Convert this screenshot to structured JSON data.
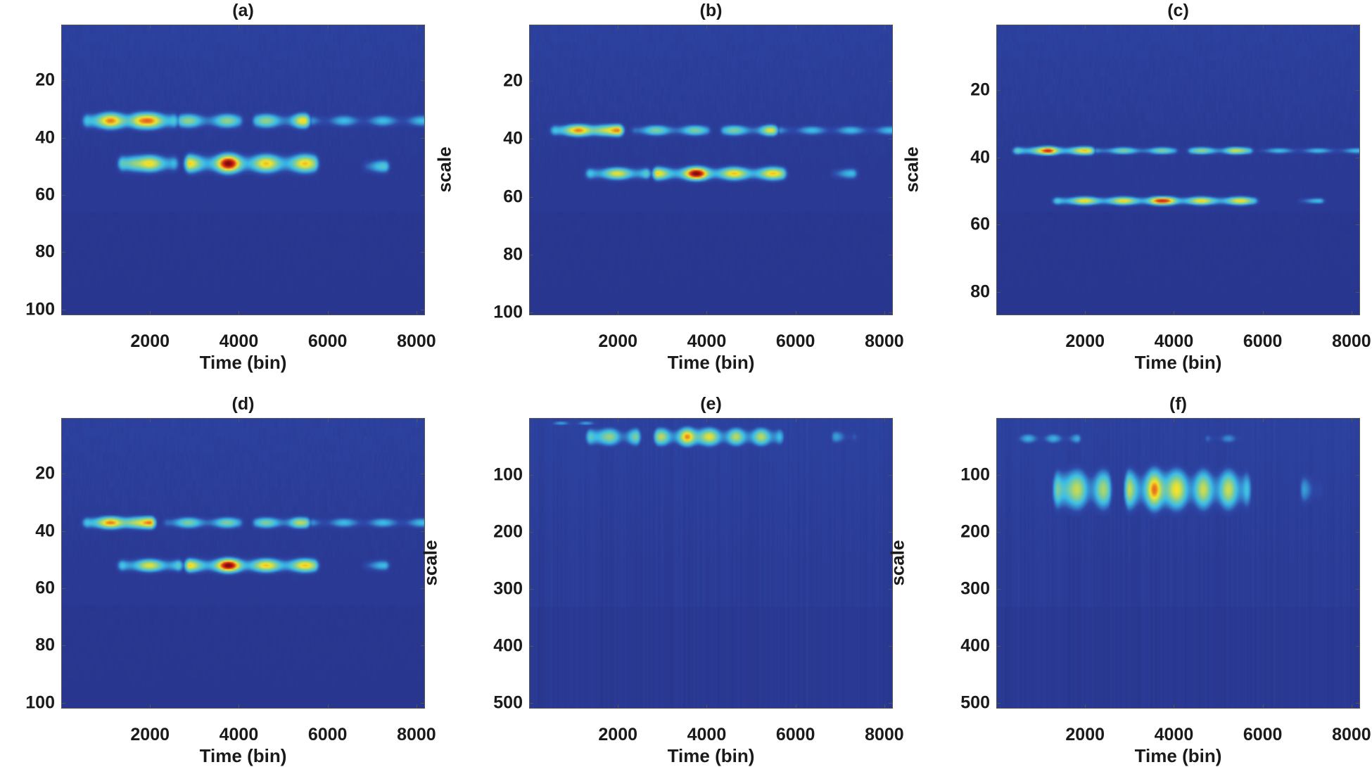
{
  "chart_data": [
    {
      "type": "heatmap",
      "title": "(a)",
      "xlabel": "Time (bin)",
      "ylabel": "scale",
      "xlim": [
        0,
        8192
      ],
      "ylim": [
        0.5,
        102
      ],
      "y_reversed": true,
      "xticks": [
        2000,
        4000,
        6000,
        8000
      ],
      "yticks": [
        20,
        40,
        60,
        80,
        100
      ],
      "colormap": "jet",
      "features": [
        {
          "t": [
            600,
            2500
          ],
          "scale": 34,
          "width": 2.5,
          "peak": 0.85,
          "hot": [
            1700
          ]
        },
        {
          "t": [
            2700,
            4000
          ],
          "scale": 34,
          "width": 2.3,
          "peak": 0.65,
          "hot": []
        },
        {
          "t": [
            4400,
            5500
          ],
          "scale": 34,
          "width": 2.3,
          "peak": 0.65,
          "hot": [
            5400
          ]
        },
        {
          "t": [
            5700,
            8192
          ],
          "scale": 34,
          "width": 2.0,
          "peak": 0.5,
          "hot": []
        },
        {
          "t": [
            1400,
            2500
          ],
          "scale": 49,
          "width": 2.6,
          "peak": 0.78,
          "hot": [
            1600
          ]
        },
        {
          "t": [
            2900,
            5700
          ],
          "scale": 49,
          "width": 2.8,
          "peak": 0.8,
          "hot": [
            3700,
            3900
          ]
        },
        {
          "t": [
            6900,
            7300
          ],
          "scale": 50,
          "width": 2.2,
          "peak": 0.55,
          "hot": []
        }
      ]
    },
    {
      "type": "heatmap",
      "title": "(b)",
      "xlabel": "Time (bin)",
      "ylabel": "scale",
      "xlim": [
        0,
        8192
      ],
      "ylim": [
        0.5,
        101
      ],
      "y_reversed": true,
      "xticks": [
        2000,
        4000,
        6000,
        8000
      ],
      "yticks": [
        20,
        40,
        60,
        80,
        100
      ],
      "colormap": "jet",
      "features": [
        {
          "t": [
            600,
            2000
          ],
          "scale": 37,
          "width": 1.8,
          "peak": 0.85,
          "hot": [
            1600
          ]
        },
        {
          "t": [
            2400,
            4000
          ],
          "scale": 37,
          "width": 1.7,
          "peak": 0.62,
          "hot": []
        },
        {
          "t": [
            4400,
            5500
          ],
          "scale": 37,
          "width": 1.7,
          "peak": 0.62,
          "hot": [
            5400
          ]
        },
        {
          "t": [
            5700,
            8192
          ],
          "scale": 37,
          "width": 1.6,
          "peak": 0.5,
          "hot": []
        },
        {
          "t": [
            1400,
            2600
          ],
          "scale": 52,
          "width": 1.9,
          "peak": 0.75,
          "hot": []
        },
        {
          "t": [
            2900,
            5700
          ],
          "scale": 52,
          "width": 2.0,
          "peak": 0.8,
          "hot": [
            3700,
            3900
          ]
        },
        {
          "t": [
            6900,
            7300
          ],
          "scale": 52,
          "width": 1.8,
          "peak": 0.5,
          "hot": []
        }
      ]
    },
    {
      "type": "heatmap",
      "title": "(c)",
      "xlabel": "Time (bin)",
      "ylabel": "scale",
      "xlim": [
        0,
        8192
      ],
      "ylim": [
        0.5,
        87
      ],
      "y_reversed": true,
      "xticks": [
        2000,
        4000,
        6000,
        8000
      ],
      "yticks": [
        20,
        40,
        60,
        80
      ],
      "colormap": "jet",
      "features": [
        {
          "t": [
            500,
            2100
          ],
          "scale": 38,
          "width": 1.1,
          "peak": 0.8,
          "hot": [
            1200
          ]
        },
        {
          "t": [
            2300,
            4000
          ],
          "scale": 38,
          "width": 1.0,
          "peak": 0.62,
          "hot": []
        },
        {
          "t": [
            4400,
            5700
          ],
          "scale": 38,
          "width": 1.0,
          "peak": 0.65,
          "hot": [
            5300
          ]
        },
        {
          "t": [
            6000,
            8192
          ],
          "scale": 38,
          "width": 0.9,
          "peak": 0.5,
          "hot": []
        },
        {
          "t": [
            1400,
            5800
          ],
          "scale": 53,
          "width": 1.1,
          "peak": 0.78,
          "hot": [
            3600,
            3900
          ]
        },
        {
          "t": [
            6900,
            7300
          ],
          "scale": 53,
          "width": 0.9,
          "peak": 0.5,
          "hot": []
        }
      ]
    },
    {
      "type": "heatmap",
      "title": "(d)",
      "xlabel": "Time (bin)",
      "ylabel": "scale",
      "xlim": [
        0,
        8192
      ],
      "ylim": [
        0.5,
        102
      ],
      "y_reversed": true,
      "xticks": [
        2000,
        4000,
        6000,
        8000
      ],
      "yticks": [
        20,
        40,
        60,
        80,
        100
      ],
      "colormap": "jet",
      "features": [
        {
          "t": [
            600,
            2000
          ],
          "scale": 37,
          "width": 1.9,
          "peak": 0.85,
          "hot": [
            1600
          ]
        },
        {
          "t": [
            2400,
            4000
          ],
          "scale": 37,
          "width": 1.8,
          "peak": 0.62,
          "hot": []
        },
        {
          "t": [
            4400,
            5500
          ],
          "scale": 37,
          "width": 1.8,
          "peak": 0.62,
          "hot": [
            5300
          ]
        },
        {
          "t": [
            5700,
            8192
          ],
          "scale": 37,
          "width": 1.7,
          "peak": 0.5,
          "hot": []
        },
        {
          "t": [
            1400,
            2600
          ],
          "scale": 52,
          "width": 2.0,
          "peak": 0.75,
          "hot": []
        },
        {
          "t": [
            2900,
            5700
          ],
          "scale": 52,
          "width": 2.1,
          "peak": 0.8,
          "hot": [
            3700,
            3900
          ]
        },
        {
          "t": [
            6900,
            7300
          ],
          "scale": 52,
          "width": 1.8,
          "peak": 0.5,
          "hot": []
        }
      ]
    },
    {
      "type": "heatmap",
      "title": "(e)",
      "xlabel": "Time (bin)",
      "ylabel": "scale",
      "xlim": [
        0,
        8192
      ],
      "ylim": [
        0,
        510
      ],
      "y_reversed": true,
      "xticks": [
        2000,
        4000,
        6000,
        8000
      ],
      "yticks": [
        100,
        200,
        300,
        400,
        500
      ],
      "colormap": "jet",
      "features": [
        {
          "t": [
            1400,
            2400
          ],
          "scale": 32,
          "width": 14,
          "peak": 0.62,
          "hot": [
            1600
          ]
        },
        {
          "t": [
            2900,
            5600
          ],
          "scale": 32,
          "width": 14,
          "peak": 0.7,
          "hot": [
            3600,
            3900
          ]
        },
        {
          "t": [
            6900,
            7300
          ],
          "scale": 32,
          "width": 12,
          "peak": 0.45,
          "hot": []
        },
        {
          "t": [
            500,
            1500
          ],
          "scale": 8,
          "width": 4,
          "peak": 0.45,
          "hot": []
        }
      ]
    },
    {
      "type": "heatmap",
      "title": "(f)",
      "xlabel": "Time (bin)",
      "ylabel": "scale",
      "xlim": [
        0,
        8192
      ],
      "ylim": [
        0,
        510
      ],
      "y_reversed": true,
      "xticks": [
        2000,
        4000,
        6000,
        8000
      ],
      "yticks": [
        100,
        200,
        300,
        400,
        500
      ],
      "colormap": "jet",
      "features": [
        {
          "t": [
            500,
            1800
          ],
          "scale": 35,
          "width": 9,
          "peak": 0.48,
          "hot": []
        },
        {
          "t": [
            4800,
            5500
          ],
          "scale": 35,
          "width": 9,
          "peak": 0.42,
          "hot": []
        },
        {
          "t": [
            1400,
            2500
          ],
          "scale": 125,
          "width": 30,
          "peak": 0.68,
          "hot": [
            1600
          ]
        },
        {
          "t": [
            3000,
            5600
          ],
          "scale": 125,
          "width": 30,
          "peak": 0.72,
          "hot": [
            3600,
            3900
          ]
        },
        {
          "t": [
            6950,
            7250
          ],
          "scale": 125,
          "width": 25,
          "peak": 0.45,
          "hot": []
        }
      ]
    }
  ]
}
